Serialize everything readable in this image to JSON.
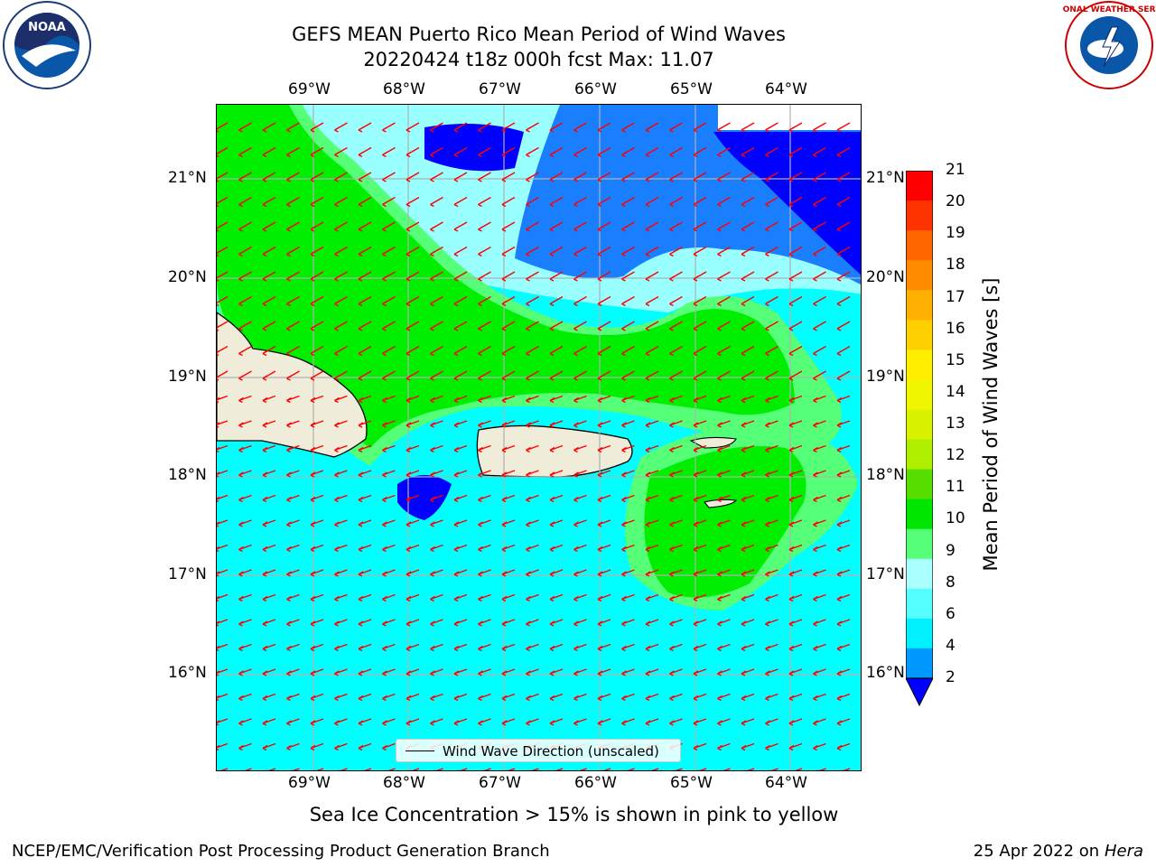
{
  "title": {
    "line1": "GEFS MEAN Puerto Rico Mean Period of Wind Waves",
    "line2": "20220424 t18z 000h fcst   Max: 11.07"
  },
  "axes": {
    "lon_labels": [
      "69°W",
      "68°W",
      "67°W",
      "66°W",
      "65°W",
      "64°W"
    ],
    "lat_labels": [
      "21°N",
      "20°N",
      "19°N",
      "18°N",
      "17°N",
      "16°N"
    ]
  },
  "colorbar": {
    "title": "Mean Period of Wind Waves [s]",
    "ticks": [
      "21",
      "20",
      "19",
      "18",
      "17",
      "16",
      "15",
      "14",
      "13",
      "12",
      "11",
      "10",
      "9",
      "8",
      "6",
      "4",
      "2"
    ],
    "colors": [
      "#ff0000",
      "#ff3300",
      "#ff6600",
      "#ff8c00",
      "#ffb000",
      "#ffd000",
      "#ffee00",
      "#f0f500",
      "#d8f200",
      "#b0ee00",
      "#55dd00",
      "#00e600",
      "#55ff77",
      "#aaffff",
      "#55ffff",
      "#00f0ff",
      "#0099ff"
    ],
    "extend_color": "#0000ff"
  },
  "legend": {
    "label": "Wind Wave Direction (unscaled)"
  },
  "note": "Sea Ice Concentration > 15% is shown in pink to yellow",
  "footer": {
    "left": "NCEP/EMC/Verification Post Processing Product Generation Branch",
    "right_prefix": "25 Apr 2022 on ",
    "right_machine": "Hera"
  },
  "logos": {
    "left": "NOAA",
    "right": "NATIONAL WEATHER SERVICE"
  },
  "map_colors": {
    "cyan": "#00ffff",
    "lightcyan": "#99ffff",
    "green": "#00ee00",
    "lightgreen": "#55ff77",
    "blue": "#0000ff",
    "midblue": "#1a7fff",
    "land": "#efedda",
    "arrow": "#ff0000"
  }
}
